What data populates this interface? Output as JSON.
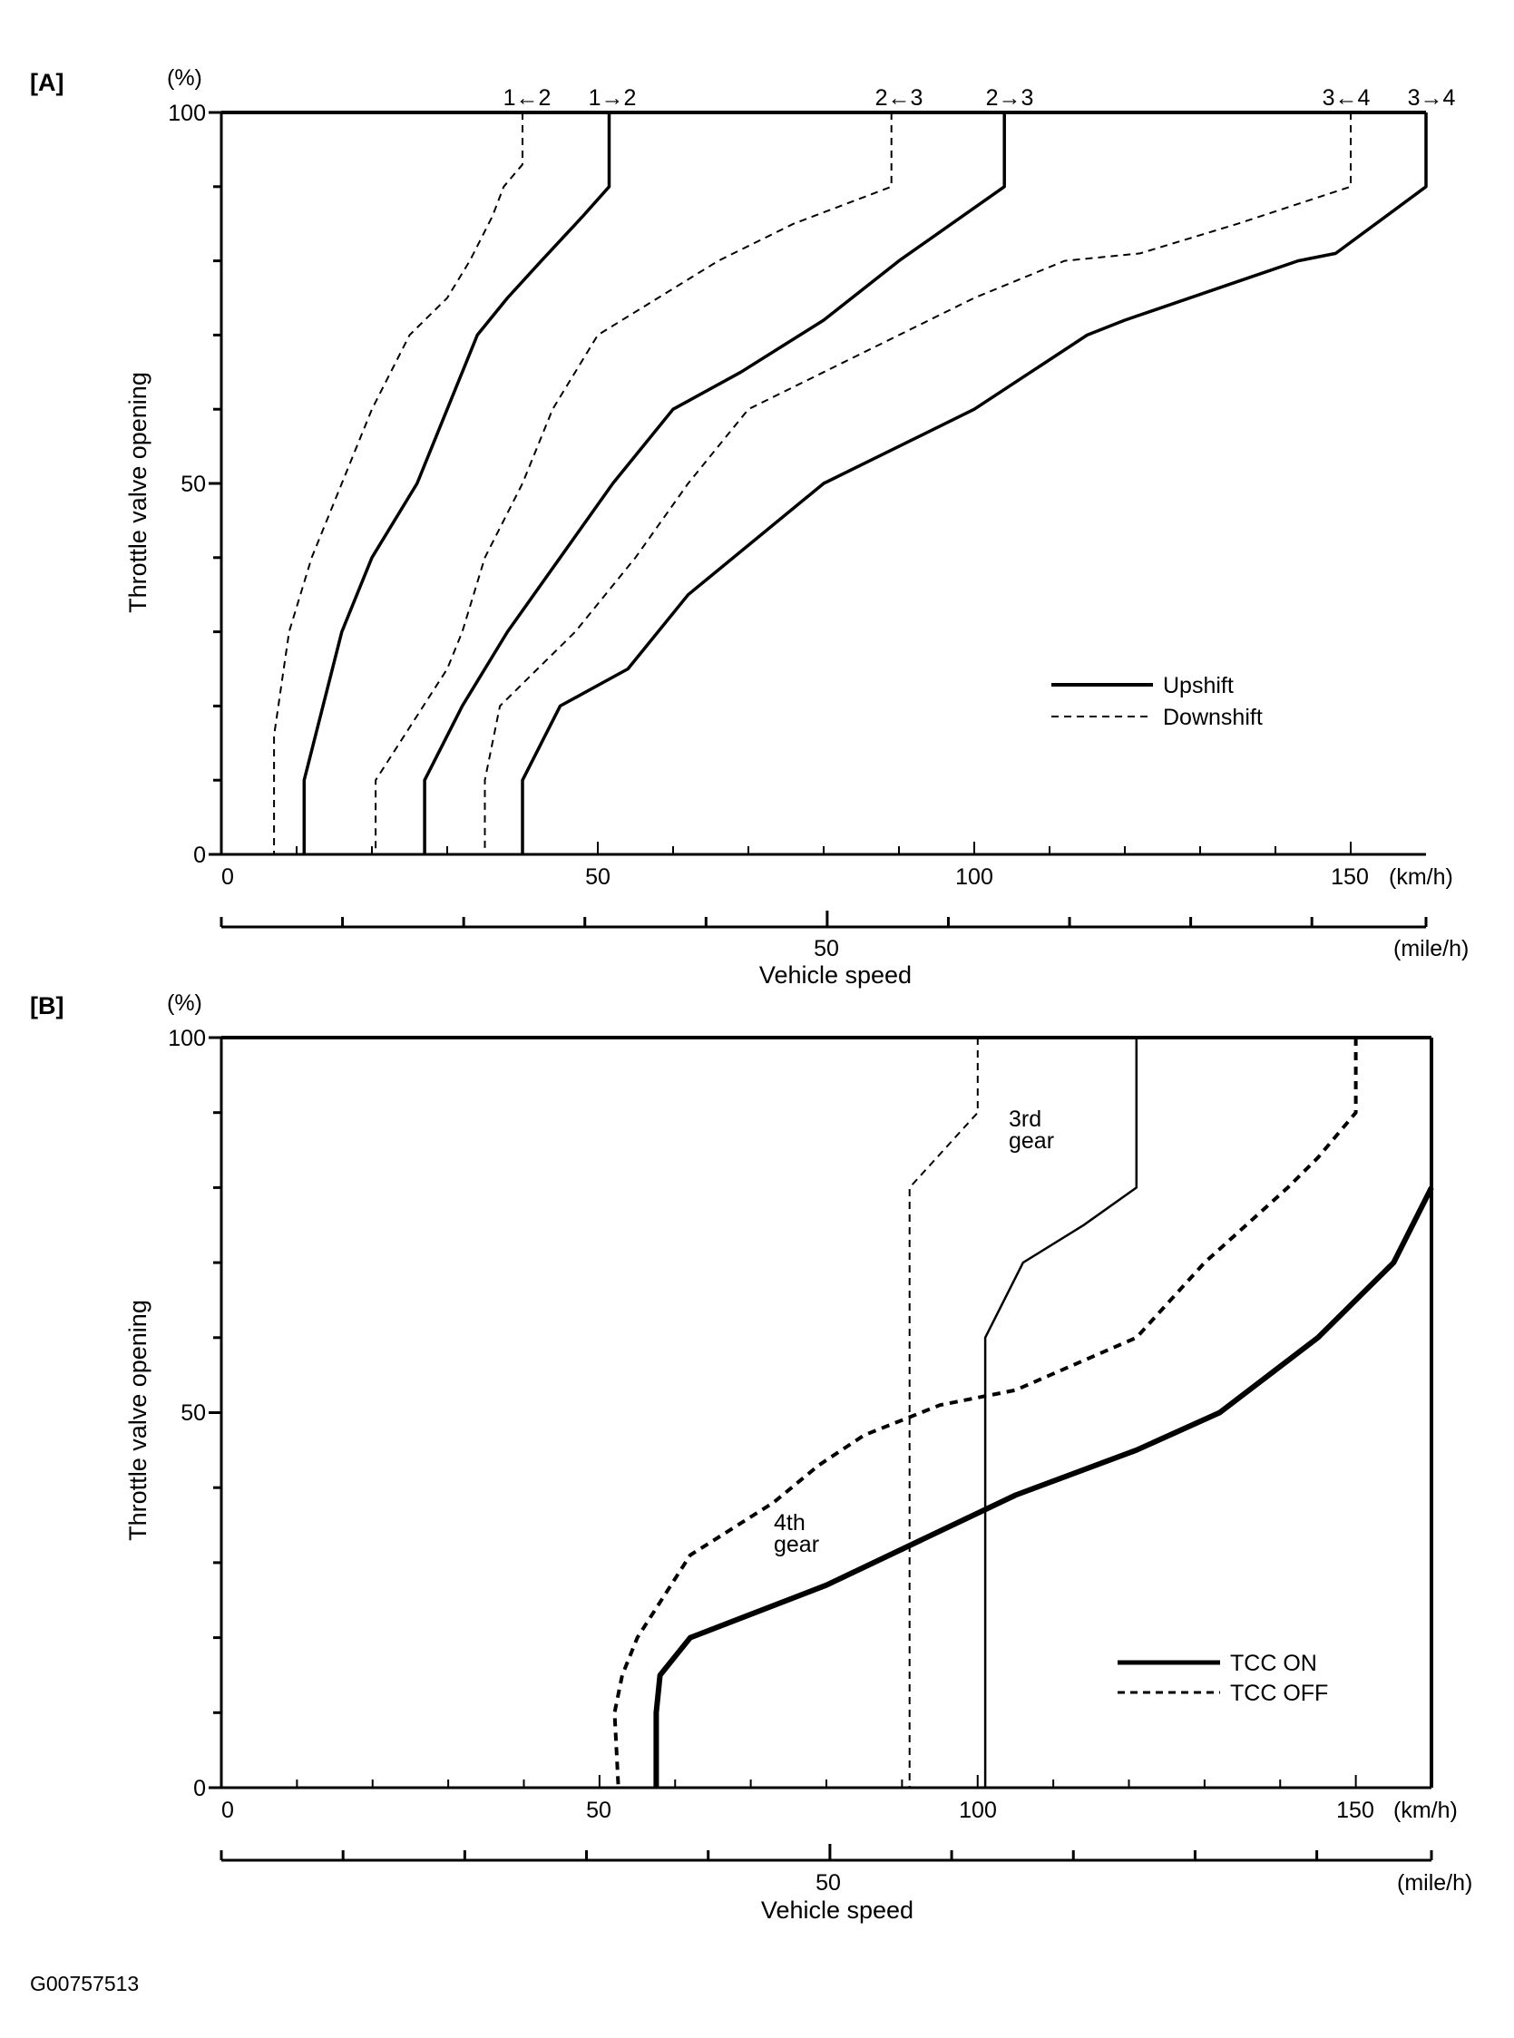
{
  "figure_id": "G00757513",
  "chart_data": [
    {
      "panel": "[A]",
      "type": "line",
      "xlabel": "Vehicle speed",
      "ylabel": "Throttle valve opening",
      "y_unit": "(%)",
      "x_unit": "(km/h)",
      "x2_unit": "(mile/h)",
      "xlim": [
        0,
        160
      ],
      "ylim": [
        0,
        100
      ],
      "x_ticks": [
        "0",
        "50",
        "100",
        "150"
      ],
      "x2_ticks": [
        "50"
      ],
      "y_ticks": [
        "0",
        "50",
        "100"
      ],
      "legend": [
        {
          "label": "Upshift",
          "style": "solid"
        },
        {
          "label": "Downshift",
          "style": "dashed"
        }
      ],
      "series": [
        {
          "name": "1←2",
          "style": "dashed",
          "x": [
            40,
            40,
            37.5,
            36,
            33,
            30,
            25,
            20,
            16,
            12,
            9,
            7,
            7
          ],
          "y": [
            100,
            93,
            90,
            86,
            80,
            75,
            70,
            60,
            50,
            40,
            30,
            16,
            0
          ]
        },
        {
          "name": "1→2",
          "style": "solid",
          "x": [
            51.5,
            51.5,
            48,
            42.5,
            38,
            34,
            30,
            26,
            20,
            16,
            11,
            11
          ],
          "y": [
            100,
            90,
            86,
            80,
            75,
            70,
            60,
            50,
            40,
            30,
            10,
            0
          ]
        },
        {
          "name": "2←3",
          "style": "dashed",
          "x": [
            89,
            89,
            76,
            66,
            58,
            50,
            44,
            40,
            35,
            32,
            30,
            20.5,
            20.5
          ],
          "y": [
            100,
            90,
            85,
            80,
            75,
            70,
            60,
            50,
            40,
            30,
            25,
            10,
            0
          ]
        },
        {
          "name": "2→3",
          "style": "solid",
          "x": [
            104,
            104,
            90,
            80,
            69,
            60,
            52,
            45,
            38,
            32,
            27,
            27
          ],
          "y": [
            100,
            90,
            80,
            72,
            65,
            60,
            50,
            40,
            30,
            20,
            10,
            0
          ]
        },
        {
          "name": "3←4",
          "style": "dashed",
          "x": [
            150,
            150,
            135,
            122,
            112,
            100,
            90,
            80,
            70,
            62,
            55,
            47,
            37,
            35,
            35
          ],
          "y": [
            100,
            90,
            85,
            81,
            80,
            75,
            70,
            65,
            60,
            50,
            40,
            30,
            20,
            10,
            0
          ]
        },
        {
          "name": "3→4",
          "style": "solid",
          "x": [
            160,
            160,
            148,
            143,
            120,
            115,
            100,
            80,
            62,
            54,
            45,
            40,
            40
          ],
          "y": [
            100,
            90,
            81,
            80,
            72,
            70,
            60,
            50,
            35,
            25,
            20,
            10,
            0
          ]
        }
      ]
    },
    {
      "panel": "[B]",
      "type": "line",
      "xlabel": "Vehicle speed",
      "ylabel": "Throttle valve opening",
      "y_unit": "(%)",
      "x_unit": "(km/h)",
      "x2_unit": "(mile/h)",
      "xlim": [
        0,
        160
      ],
      "ylim": [
        0,
        100
      ],
      "x_ticks": [
        "0",
        "50",
        "100",
        "150"
      ],
      "x2_ticks": [
        "50"
      ],
      "y_ticks": [
        "0",
        "50",
        "100"
      ],
      "legend": [
        {
          "label": "TCC ON",
          "style": "solid"
        },
        {
          "label": "TCC OFF",
          "style": "dashed"
        }
      ],
      "annotations": [
        {
          "text": "3rd",
          "x": 104,
          "y": 86
        },
        {
          "text": "gear",
          "x": 104,
          "y": 83
        },
        {
          "text": "4th",
          "x": 73,
          "y": 34
        },
        {
          "text": "gear",
          "x": 73,
          "y": 31
        }
      ],
      "series": [
        {
          "name": "TCC ON 3rd gear",
          "style": "solid",
          "x": [
            121,
            121,
            114,
            106,
            101,
            101
          ],
          "y": [
            100,
            80,
            75,
            70,
            60,
            0
          ]
        },
        {
          "name": "TCC OFF 3rd gear",
          "style": "dashed",
          "x": [
            100,
            100,
            95.5,
            91,
            91
          ],
          "y": [
            100,
            90,
            85,
            80,
            0
          ]
        },
        {
          "name": "TCC ON 4th gear",
          "style": "solid",
          "x": [
            160,
            155,
            145,
            132,
            121,
            105,
            80,
            62,
            58,
            57.5,
            57.5
          ],
          "y": [
            80,
            70,
            60,
            50,
            45,
            39,
            27,
            20,
            15,
            10,
            0
          ]
        },
        {
          "name": "TCC OFF 4th gear",
          "style": "dashed",
          "x": [
            150,
            150,
            145,
            141,
            130,
            121,
            105,
            95,
            90,
            85,
            79,
            73,
            62,
            55,
            53,
            52,
            52.5
          ],
          "y": [
            100,
            90,
            84,
            80,
            70,
            60,
            53,
            51,
            49,
            47,
            43,
            38,
            31,
            20,
            15,
            10,
            0
          ]
        }
      ]
    }
  ]
}
